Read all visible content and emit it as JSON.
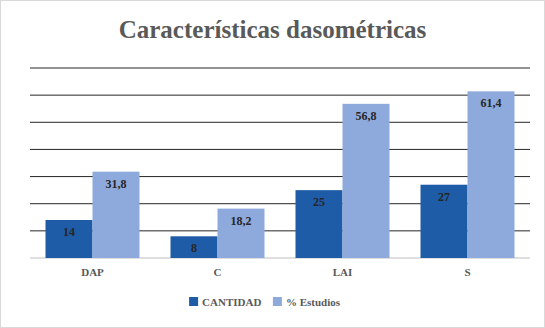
{
  "chart_data": {
    "type": "bar",
    "title": "Características dasométricas",
    "categories": [
      "DAP",
      "C",
      "LAI",
      "S"
    ],
    "series": [
      {
        "name": "CANTIDAD",
        "color": "#1f5ca8",
        "values": [
          14,
          8,
          25,
          27
        ]
      },
      {
        "name": "% Estudios",
        "color": "#8eaadc",
        "values": [
          31.8,
          18.2,
          56.8,
          61.4
        ],
        "value_labels": [
          "31,8",
          "18,2",
          "56,8",
          "61,4"
        ]
      }
    ],
    "ylim": [
      0,
      70
    ],
    "yticks": [
      0,
      10,
      20,
      30,
      40,
      50,
      60,
      70
    ],
    "grid": true,
    "legend": "bottom",
    "data_labels": true,
    "tick_labels": "x"
  }
}
